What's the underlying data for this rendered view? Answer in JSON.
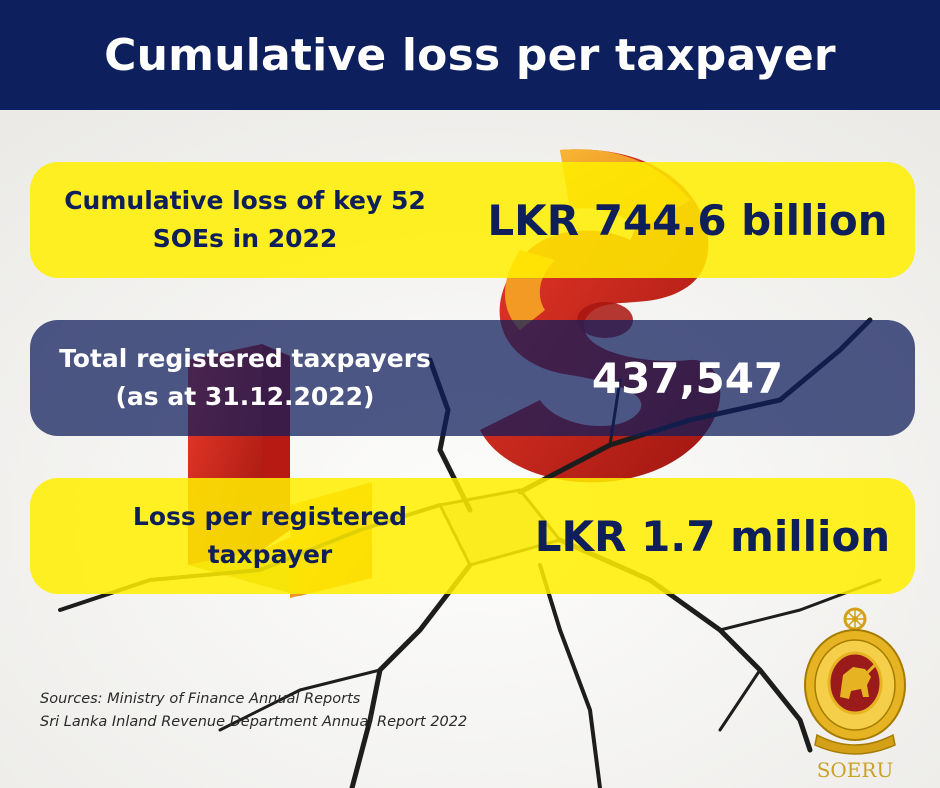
{
  "header": {
    "title": "Cumulative loss per taxpayer"
  },
  "cards": [
    {
      "label_lines": [
        "Cumulative loss of key 52",
        "SOEs in 2022"
      ],
      "value": "LKR 744.6 billion"
    },
    {
      "label_lines": [
        "Total registered taxpayers",
        "(as at 31.12.2022)"
      ],
      "value": "437,547"
    },
    {
      "label_lines": [
        "Loss per registered",
        "taxpayer"
      ],
      "value": "LKR 1.7 million"
    }
  ],
  "sources": [
    "Sources: Ministry of Finance Annual Reports",
    "Sri Lanka Inland Revenue Department Annual Report 2022"
  ],
  "logo": {
    "text": "SOERU"
  },
  "colors": {
    "header_bg": "#0d1f5c",
    "yellow": "#ffef00",
    "navy": "#101e5c",
    "accent_red": "#d8231e"
  }
}
